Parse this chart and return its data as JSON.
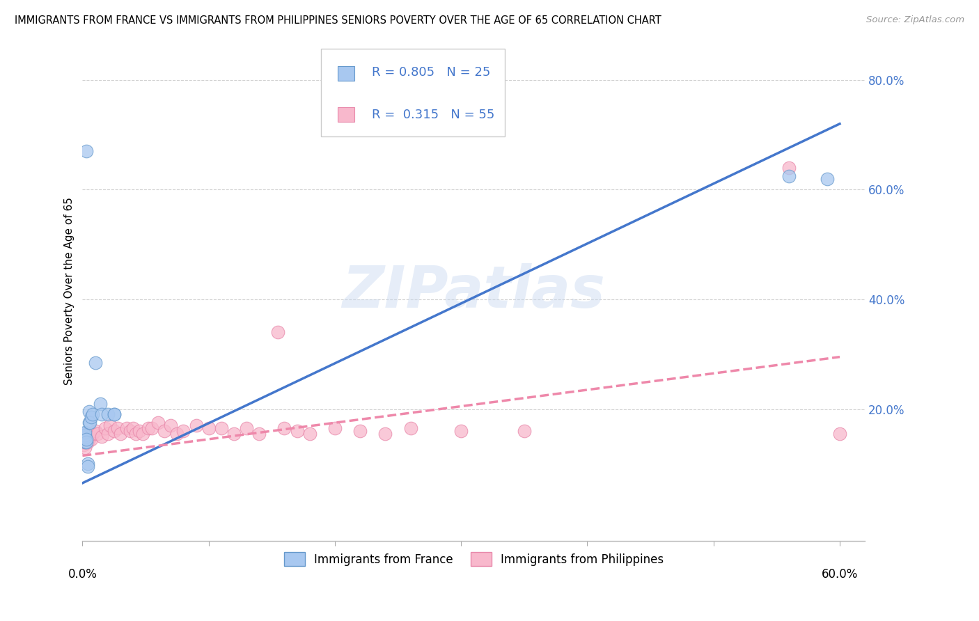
{
  "title": "IMMIGRANTS FROM FRANCE VS IMMIGRANTS FROM PHILIPPINES SENIORS POVERTY OVER THE AGE OF 65 CORRELATION CHART",
  "source": "Source: ZipAtlas.com",
  "ylabel": "Seniors Poverty Over the Age of 65",
  "ytick_labels": [
    "80.0%",
    "60.0%",
    "40.0%",
    "20.0%"
  ],
  "ytick_vals": [
    0.8,
    0.6,
    0.4,
    0.2
  ],
  "xlim": [
    0.0,
    0.62
  ],
  "ylim": [
    -0.04,
    0.87
  ],
  "france_color": "#A8C8F0",
  "france_edge": "#6699CC",
  "philippines_color": "#F8B8CC",
  "philippines_edge": "#E888AA",
  "france_line_color": "#4477CC",
  "philippines_line_color": "#EE88AA",
  "france_R": 0.805,
  "france_N": 25,
  "philippines_R": 0.315,
  "philippines_N": 55,
  "legend_text_color": "#4477CC",
  "watermark": "ZIPatlas",
  "france_scatter_x": [
    0.001,
    0.001,
    0.001,
    0.002,
    0.002,
    0.002,
    0.002,
    0.003,
    0.003,
    0.003,
    0.004,
    0.004,
    0.005,
    0.005,
    0.006,
    0.007,
    0.008,
    0.01,
    0.014,
    0.015,
    0.02,
    0.025,
    0.025,
    0.56,
    0.59
  ],
  "france_scatter_y": [
    0.145,
    0.15,
    0.155,
    0.14,
    0.148,
    0.152,
    0.158,
    0.14,
    0.145,
    0.67,
    0.1,
    0.095,
    0.195,
    0.175,
    0.175,
    0.185,
    0.19,
    0.285,
    0.21,
    0.19,
    0.19,
    0.19,
    0.19,
    0.625,
    0.62
  ],
  "philippines_scatter_x": [
    0.001,
    0.001,
    0.001,
    0.002,
    0.002,
    0.002,
    0.003,
    0.003,
    0.004,
    0.004,
    0.005,
    0.005,
    0.006,
    0.007,
    0.008,
    0.01,
    0.012,
    0.015,
    0.018,
    0.02,
    0.022,
    0.025,
    0.028,
    0.03,
    0.035,
    0.038,
    0.04,
    0.042,
    0.045,
    0.048,
    0.052,
    0.055,
    0.06,
    0.065,
    0.07,
    0.075,
    0.08,
    0.09,
    0.1,
    0.11,
    0.12,
    0.13,
    0.14,
    0.155,
    0.16,
    0.17,
    0.18,
    0.2,
    0.22,
    0.24,
    0.26,
    0.3,
    0.35,
    0.56,
    0.6
  ],
  "philippines_scatter_y": [
    0.135,
    0.145,
    0.15,
    0.13,
    0.14,
    0.148,
    0.145,
    0.155,
    0.14,
    0.15,
    0.145,
    0.155,
    0.15,
    0.145,
    0.155,
    0.16,
    0.155,
    0.15,
    0.165,
    0.155,
    0.17,
    0.16,
    0.165,
    0.155,
    0.165,
    0.16,
    0.165,
    0.155,
    0.16,
    0.155,
    0.165,
    0.165,
    0.175,
    0.16,
    0.17,
    0.155,
    0.16,
    0.17,
    0.165,
    0.165,
    0.155,
    0.165,
    0.155,
    0.34,
    0.165,
    0.16,
    0.155,
    0.165,
    0.16,
    0.155,
    0.165,
    0.16,
    0.16,
    0.64,
    0.155
  ],
  "france_trendline_x": [
    0.0,
    0.6
  ],
  "france_trendline_y": [
    0.065,
    0.72
  ],
  "philippines_trendline_x": [
    0.0,
    0.6
  ],
  "philippines_trendline_y": [
    0.115,
    0.295
  ]
}
